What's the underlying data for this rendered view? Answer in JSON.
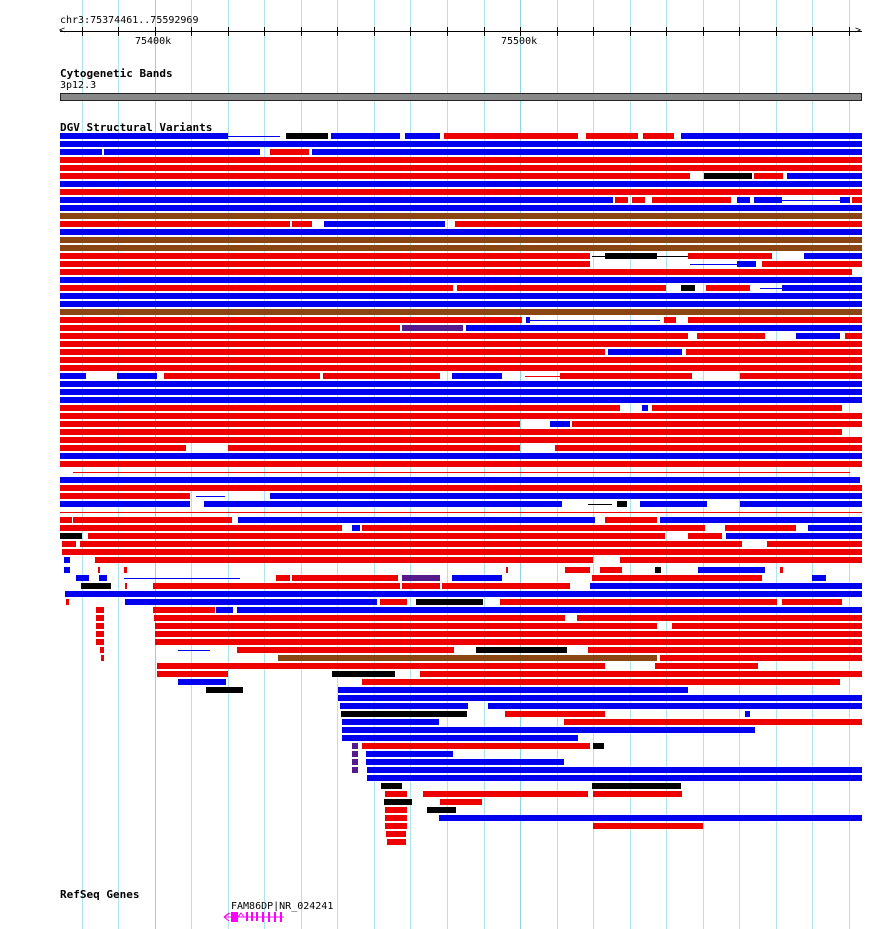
{
  "ruler": {
    "location": "chr3:75374461..75592969",
    "ticks": [
      "75400k",
      "75500k"
    ]
  },
  "tracks": {
    "cytoband": {
      "title": "Cytogenetic Bands",
      "band": "3p12.3"
    },
    "dgv": {
      "title": "DGV Structural Variants"
    },
    "refseq": {
      "title": "RefSeq Genes",
      "gene_label": "FAM86DP|NR_024241"
    }
  },
  "colors": {
    "gain": "#ee0000",
    "loss": "#0000ee",
    "inversion": "#000000",
    "both": "#8b4513",
    "other": "#551a8b",
    "gene": "#ff00ff",
    "grid": "#aee4ee"
  }
}
